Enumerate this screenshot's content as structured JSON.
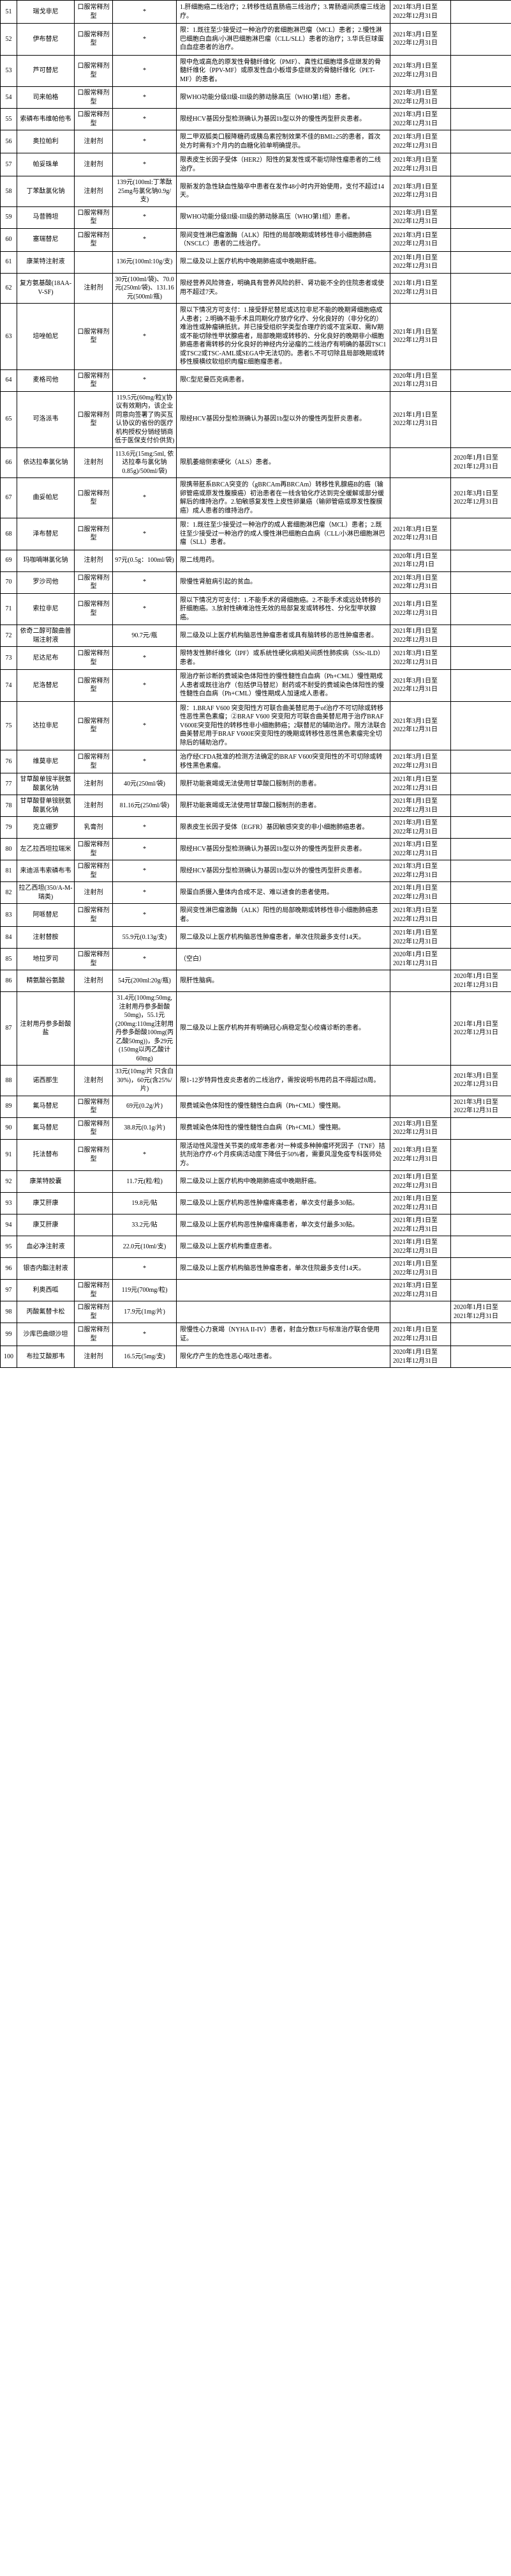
{
  "rows": [
    {
      "idx": "51",
      "name": "瑞戈非尼",
      "form": "口服常释剂型",
      "price": "*",
      "desc": "1.肝细胞癌二线治疗；2.转移性结直肠癌三线治疗；3.胃肠道间质瘤三线治疗。",
      "da": "2021年3月1日至2022年12月31日",
      "db": ""
    },
    {
      "idx": "52",
      "name": "伊布替尼",
      "form": "口服常释剂型",
      "price": "*",
      "desc": "限：1.既往至少接受过一种治疗的套细胞淋巴瘤（MCL）患者；2.慢性淋巴细胞白血病/小淋巴细胞淋巴瘤（CLL/SLL）患者的治疗；3.华氏巨球蛋白血症患者的治疗。",
      "da": "2021年3月1日至2022年12月31日",
      "db": ""
    },
    {
      "idx": "53",
      "name": "芦可替尼",
      "form": "口服常释剂型",
      "price": "*",
      "desc": "限中危或高危的原发性骨髓纤维化（PMF）、真性红细胞增多症继发的骨髓纤维化（PPV-MF）或原发性血小板增多症继发的骨髓纤维化（PET-MF）的患者。",
      "da": "2021年3月1日至2022年12月31日",
      "db": ""
    },
    {
      "idx": "54",
      "name": "司来帕格",
      "form": "口服常释剂型",
      "price": "*",
      "desc": "限WHO功能分级II级-III级的肺动脉高压（WHO第1组）患者。",
      "da": "2021年3月1日至2022年12月31日",
      "db": ""
    },
    {
      "idx": "55",
      "name": "索磷布韦维帕他韦",
      "form": "口服常释剂型",
      "price": "*",
      "desc": "限经HCV基因分型检测确认为基因1b型以外的慢性丙型肝炎患者。",
      "da": "2021年3月1日至2022年12月31日",
      "db": ""
    },
    {
      "idx": "56",
      "name": "奥拉帕利",
      "form": "注射剂",
      "price": "*",
      "desc": "限二甲双胍类口服降糖药或胰岛素控制效果不佳的BMI≥25的患者，首次处方时需有3个月内的血糖化验单明确提示。",
      "da": "2021年3月1日至2022年12月31日",
      "db": ""
    },
    {
      "idx": "57",
      "name": "帕妥珠单",
      "form": "注射剂",
      "price": "*",
      "desc": "限表皮生长因子受体（HER2）阳性的复发性或不能切除性瘤患者的二线治疗。",
      "da": "2021年3月1日至2022年12月31日",
      "db": ""
    },
    {
      "idx": "58",
      "name": "丁苯酞氯化钠",
      "form": "注射剂",
      "price": "139元(100ml:丁苯酞25mg与氯化钠0.9g/支)",
      "desc": "限新发的急性缺血性脑卒中患者在发作48小时内开始使用，支付不超过14天。",
      "da": "2021年3月1日至2022年12月31日",
      "db": ""
    },
    {
      "idx": "59",
      "name": "马昔腾坦",
      "form": "口服常释剂型",
      "price": "*",
      "desc": "限WHO功能分级II级-III级的肺动脉高压（WHO第1组）患者。",
      "da": "2021年3月1日至2022年12月31日",
      "db": ""
    },
    {
      "idx": "60",
      "name": "塞瑞替尼",
      "form": "口服常释剂型",
      "price": "*",
      "desc": "限间变性淋巴瘤激酶（ALK）阳性的局部晚期或转移性非小细胞肺癌（NSCLC）患者的二线治疗。",
      "da": "2021年3月1日至2022年12月31日",
      "db": ""
    },
    {
      "idx": "61",
      "name": "康莱特注射液",
      "form": "",
      "price": "136元(100ml:10g/支)",
      "desc": "限二级及以上医疗机构中晚期肺癌或中晚期肝癌。",
      "da": "2021年1月1日至2022年12月31日",
      "db": ""
    },
    {
      "idx": "62",
      "name": "复方氨基酸(18AA-V-SF)",
      "form": "注射剂",
      "price": "30元(100ml/袋)、70.0元(250ml/袋)、131.16元(500ml/瓶)",
      "desc": "限经营养风险筛查，明确具有营养风险的肝、肾功能不全的住院患者或使用不超过7天。",
      "da": "2021年1月1日至2022年12月31日",
      "db": ""
    },
    {
      "idx": "63",
      "name": "培唑帕尼",
      "form": "口服常释剂型",
      "price": "*",
      "desc": "限以下情况方可支付：1.接受舒尼替尼或达拉非尼不能的晚期肾细胞癌成人患者；2.明确不能手术且同期化疗放疗化疗、分化良好的（非分化的）难治性或肿瘤碘抵抗，并已接受组织学类型合理疗的或不宜采取、需Ⅳ期或不能切除性甲状腺癌者，局部晚期或转移的、分化良好的晚期非小细胞肺癌患者需转移的分化良好的神经内分泌瘤的二线治疗有明确的基因TSC1或TSC2或TSC-AML或SEGA中无法切的。患者5.不可切除且局部晚期或转移性膜横纹软组织肉瘤E细胞瘤患者。",
      "da": "2021年1月1日至2022年12月31日",
      "db": ""
    },
    {
      "idx": "64",
      "name": "麦格司他",
      "form": "口服常释剂型",
      "price": "*",
      "desc": "限C型尼曼匹克病患者。",
      "da": "2020年1月1日至2021年12月31日",
      "db": ""
    },
    {
      "idx": "65",
      "name": "可洛派韦",
      "form": "口服常释剂型",
      "price": "119.5元(60mg/粒)(协议有效期内，该企业同意向签署了购买互认协议的省份的医疗机构授权分销经销商低于医保支付价供货)",
      "desc": "限经HCV基因分型检测确认为基因1b型以外的慢性丙型肝炎患者。",
      "da": "2021年1月1日至2022年12月31日",
      "db": ""
    },
    {
      "idx": "66",
      "name": "依达拉奉氯化钠",
      "form": "注射剂",
      "price": "113.6元(15mg:5ml, 依达拉奉与氯化钠0.85g)/500ml/袋)",
      "desc": "限肌萎缩侧索硬化（ALS）患者。",
      "da": "",
      "db": "2020年1月1日至2021年12月31日"
    },
    {
      "idx": "67",
      "name": "曲妥帕尼",
      "form": "口服常释剂型",
      "price": "*",
      "desc": "限携带胚系BRCA突变的（gBRCAm再BRCAm）转移性乳腺癌B的癌（输卵管癌或原发性腹膜癌）初治患者在一线含铂化疗达到完全缓解或部分缓解后的维持治疗。2.铂敏感复发性上皮性卵巢癌（输卵管癌或原发性腹膜癌）成人患者的维持治疗。",
      "da": "",
      "db": "2021年3月1日至2022年12月31日"
    },
    {
      "idx": "68",
      "name": "泽布替尼",
      "form": "口服常释剂型",
      "price": "*",
      "desc": "限：1.既往至少接受过一种治疗的成人套细胞淋巴瘤（MCL）患者；2.既往至少接受过一种治疗的成人慢性淋巴细胞白血病（CLL/小淋巴细胞淋巴瘤（SLL）患者。",
      "da": "2021年3月1日至2022年12月31日",
      "db": ""
    },
    {
      "idx": "69",
      "name": "玛咖喃啉氯化钠",
      "form": "注射剂",
      "price": "97元(0.5g：100ml/袋)",
      "desc": "限二线用药。",
      "da": "2020年1月1日至2021年12月1日",
      "db": ""
    },
    {
      "idx": "70",
      "name": "罗沙司他",
      "form": "口服常释剂型",
      "price": "*",
      "desc": "限慢性肾脏病引起的贫血。",
      "da": "2021年3月1日至2022年12月31日",
      "db": ""
    },
    {
      "idx": "71",
      "name": "索拉非尼",
      "form": "口服常释剂型",
      "price": "*",
      "desc": "限以下情况方可支付：1.不能手术的肾细胞癌。2.不能手术或远处转移的肝细胞癌。3.放射性碘难治性无效的局部复发或转移性、分化型甲状腺癌。",
      "da": "2021年1月1日至2022年12月31日",
      "db": ""
    },
    {
      "idx": "72",
      "name": "依奇二醇可酸曲普瑞注射液",
      "form": "",
      "price": "90.7元/瓶",
      "desc": "限二级及以上医疗机构脑恶性肿瘤患者或具有脑转移的恶性肿瘤患者。",
      "da": "2021年1月1日至2022年12月31日",
      "db": ""
    },
    {
      "idx": "73",
      "name": "尼达尼布",
      "form": "口服常释剂型",
      "price": "*",
      "desc": "限特发性肺纤维化（IPF）或系统性硬化病相关间质性肺疾病（SSc-ILD）患者。",
      "da": "2021年3月1日至2022年12月31日",
      "db": ""
    },
    {
      "idx": "74",
      "name": "尼洛替尼",
      "form": "口服常释剂型",
      "price": "*",
      "desc": "限治疗新诊断的费城染色体阳性的慢性髓性白血病（Ph+CML）慢性期成人患者或既往治疗（包括伊马替尼）耐药或不耐受的费城染色体阳性的慢性髓性白血病（Ph+CML）慢性期成人加速成人患者。",
      "da": "2021年3月1日至2022年12月31日",
      "db": ""
    },
    {
      "idx": "75",
      "name": "达拉非尼",
      "form": "口服常释剂型",
      "price": "*",
      "desc": "限：1.BRAF V600 突变阳性方可联合曲美替尼用于of治疗不可切除或转移性恶性黑色素瘤；②BRAF V600 突变阳方可联合曲美替尼用于治疗BRAF V600E突变阳性的转移性非小细胞肺癌；2联替尼的辅助治疗。限方法联合曲美替尼用于BRAF V600E突变阳性的晚期或转移性恶性黑色素瘤完全切除后的辅助治疗。",
      "da": "2021年3月1日至2022年12月31日",
      "db": ""
    },
    {
      "idx": "76",
      "name": "维莫非尼",
      "form": "口服常释剂型",
      "price": "*",
      "desc": "治疗经CFDA批准的检测方法确定的BRAF V600突变阳性的不可切除或转移性黑色素瘤。",
      "da": "2021年3月1日至2022年12月31日",
      "db": ""
    },
    {
      "idx": "77",
      "name": "甘草酸单铵半胱氨酸氯化钠",
      "form": "注射剂",
      "price": "40元(250ml/袋)",
      "desc": "限肝功能衰竭或无法使用甘草酸口服制剂的患者。",
      "da": "2021年1月1日至2022年12月31日",
      "db": ""
    },
    {
      "idx": "78",
      "name": "甘草酸苷单铵胱氨酸氯化钠",
      "form": "注射剂",
      "price": "81.16元(250ml/袋)",
      "desc": "限肝功能衰竭或无法使用甘草酸口服制剂的患者。",
      "da": "2021年1月1日至2022年12月31日",
      "db": ""
    },
    {
      "idx": "79",
      "name": "克立硼罗",
      "form": "乳膏剂",
      "price": "*",
      "desc": "限表皮生长因子受体（EGFR）基因敏感突变的非小细胞肺癌患者。",
      "da": "2021年3月1日至2022年12月31日",
      "db": ""
    },
    {
      "idx": "80",
      "name": "左乙拉西坦拉瑞米",
      "form": "口服常释剂型",
      "price": "*",
      "desc": "限经HCV基因分型检测确认为基因1b型以外的慢性丙型肝炎患者。",
      "da": "2021年3月1日至2022年12月31日",
      "db": ""
    },
    {
      "idx": "81",
      "name": "来迪派韦索磷布韦",
      "form": "口服常释剂型",
      "price": "*",
      "desc": "限经HCV基因分型检测确认为基因1b型以外的慢性丙型肝炎患者。",
      "da": "2021年3月1日至2022年12月31日",
      "db": ""
    },
    {
      "idx": "82",
      "name": "拉乙西坦(350/A-M-瑞类)",
      "form": "注射剂",
      "price": "*",
      "desc": "限蛋白质摄入量体内合成不足、难以进食的患者使用。",
      "da": "2021年1月1日至2022年12月31日",
      "db": ""
    },
    {
      "idx": "83",
      "name": "阿哌替尼",
      "form": "口服常释剂型",
      "price": "*",
      "desc": "限间变性淋巴瘤激酶（ALK）阳性的局部晚期或转移性非小细胞肺癌患者。",
      "da": "2021年3月1日至2022年12月31日",
      "db": ""
    },
    {
      "idx": "84",
      "name": "注射替胺",
      "form": "",
      "price": "55.9元(0.13g/支)",
      "desc": "限二级及以上医疗机构脑恶性肿瘤患者，单次住院最多支付14天。",
      "da": "2021年1月1日至2022年12月31日",
      "db": ""
    },
    {
      "idx": "85",
      "name": "地拉罗司",
      "form": "口服常释剂型",
      "price": "*",
      "desc": "（空白）",
      "da": "2020年1月1日至2021年12月31日",
      "db": ""
    },
    {
      "idx": "86",
      "name": "精氨酸谷氨酸",
      "form": "注射剂",
      "price": "54元(200ml:20g/瓶)",
      "desc": "限肝性脑病。",
      "da": "",
      "db": "2020年1月1日至2021年12月31日"
    },
    {
      "idx": "87",
      "name": "注射用丹参多酚酸盐",
      "form": "",
      "price": "31.4元(100mg:50mg,注射用丹参多酚酸50mg)，55.1元(200mg:110mg注射用丹参多酚酸100mg(丙乙酸50mg))，多29元(150mg以丙乙酸计60mg)",
      "desc": "限二级及以上医疗机构并有明确冠心病稳定型心绞痛诊断的患者。",
      "da": "",
      "db": "2021年1月1日至2022年12月31日"
    },
    {
      "idx": "88",
      "name": "诺西那生",
      "form": "注射剂",
      "price": "33元(10mg/片 只含白30%)，60元(含25%/片)",
      "desc": "限1-12岁特异性皮炎患者的二线治疗，需按说明书用药且不得超过8周。",
      "da": "",
      "db": "2021年3月1日至2022年12月31日"
    },
    {
      "idx": "89",
      "name": "氟马替尼",
      "form": "口服常释剂型",
      "price": "69元(0.2g/片)",
      "desc": "限费城染色体阳性的慢性髓性白血病（Ph+CML）慢性期。",
      "da": "",
      "db": "2021年3月1日至2022年12月31日"
    },
    {
      "idx": "90",
      "name": "氟马替尼",
      "form": "口服常释剂型",
      "price": "38.8元(0.1g/片)",
      "desc": "限费城染色体阳性的慢性髓性白血病（Ph+CML）慢性期。",
      "da": "2021年3月1日至2022年12月31日",
      "db": ""
    },
    {
      "idx": "91",
      "name": "托法替布",
      "form": "口服常释剂型",
      "price": "*",
      "desc": "限活动性风湿性关节类的成年患者/对一种或多种肿瘤坏死因子（TNF）拮抗剂治疗疗-6个月疾病活动度下降低于50%者，需要风湿免疫专科医师处方。",
      "da": "2021年3月1日至2022年12月31日",
      "db": ""
    },
    {
      "idx": "92",
      "name": "康莱特胶囊",
      "form": "",
      "price": "11.7元(粒/粒)",
      "desc": "限二级及以上医疗机构中晚期肺癌或中晚期肝癌。",
      "da": "2021年1月1日至2022年12月31日",
      "db": ""
    },
    {
      "idx": "93",
      "name": "康艾肝康",
      "form": "",
      "price": "19.8元/贴",
      "desc": "限二级及以上医疗机构恶性肿瘤疼痛患者，单次支付最多30贴。",
      "da": "2021年1月1日至2022年12月31日",
      "db": ""
    },
    {
      "idx": "94",
      "name": "康艾肝康",
      "form": "",
      "price": "33.2元/贴",
      "desc": "限二级及以上医疗机构恶性肿瘤疼痛患者，单次支付最多30贴。",
      "da": "2021年1月1日至2022年12月31日",
      "db": ""
    },
    {
      "idx": "95",
      "name": "血必净注射液",
      "form": "",
      "price": "22.0元(10ml/支)",
      "desc": "限二级及以上医疗机构重症患者。",
      "da": "2021年1月1日至2022年12月31日",
      "db": ""
    },
    {
      "idx": "96",
      "name": "银杏内酯注射液",
      "form": "",
      "price": "*",
      "desc": "限二级及以上医疗机构脑恶性肿瘤患者，单次住院最多支付14天。",
      "da": "2021年1月1日至2022年12月31日",
      "db": ""
    },
    {
      "idx": "97",
      "name": "利奥西呱",
      "form": "口服常释剂型",
      "price": "119元(700mg/粒)",
      "desc": "",
      "da": "2021年3月1日至2022年12月31日",
      "db": ""
    },
    {
      "idx": "98",
      "name": "丙酸氟替卡松",
      "form": "口服常释剂型",
      "price": "17.9元(1mg/片)",
      "desc": "",
      "da": "",
      "db": "2020年1月1日至2021年12月31日"
    },
    {
      "idx": "99",
      "name": "沙库巴曲缬沙坦",
      "form": "口服常释剂型",
      "price": "*",
      "desc": "限慢性心力衰竭（NYHA II-IV）患者，射血分数EF与标准治疗联合使用证。",
      "da": "2021年1月1日至2022年12月31日",
      "db": ""
    },
    {
      "idx": "100",
      "name": "布拉艾酸那韦",
      "form": "注射剂",
      "price": "16.5元(5mg/支)",
      "desc": "限化疗产生的危性恶心呕吐患者。",
      "da": "2020年1月1日至2021年12月31日",
      "db": ""
    }
  ]
}
